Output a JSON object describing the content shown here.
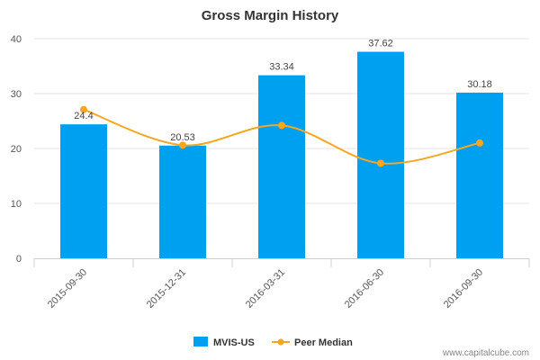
{
  "chart_data": {
    "type": "bar",
    "title": "Gross Margin History",
    "categories": [
      "2015-09-30",
      "2015-12-31",
      "2016-03-31",
      "2016-06-30",
      "2016-09-30"
    ],
    "series": [
      {
        "name": "MVIS-US",
        "type": "bar",
        "values": [
          24.4,
          20.53,
          33.34,
          37.62,
          30.18
        ],
        "color": "#00a0f0"
      },
      {
        "name": "Peer Median",
        "type": "line",
        "values": [
          27.1,
          20.6,
          24.2,
          17.3,
          21.0
        ],
        "color": "#f5a623"
      }
    ],
    "data_labels": [
      "24.4",
      "20.53",
      "33.34",
      "37.62",
      "30.18"
    ],
    "y_ticks": [
      "0",
      "10",
      "20",
      "30",
      "40"
    ],
    "ylim": [
      0,
      40
    ],
    "xlabel": "",
    "ylabel": "",
    "grid": true,
    "legend_position": "bottom-center"
  },
  "watermark": "www.capitalcube.com"
}
